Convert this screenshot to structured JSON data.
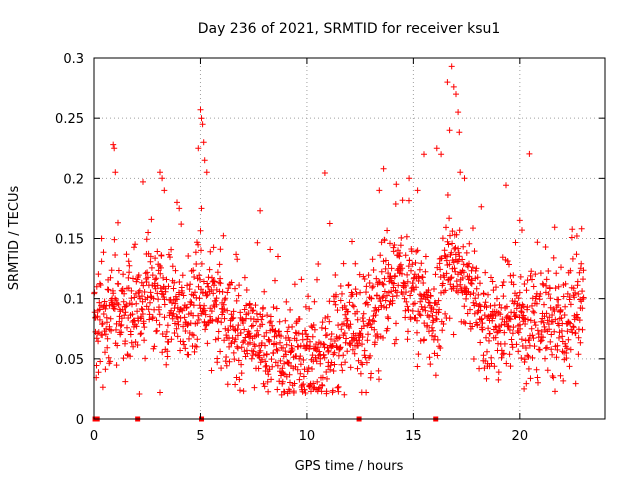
{
  "chart_data": {
    "type": "scatter",
    "title": "Day 236 of 2021, SRMTID for receiver ksu1",
    "xlabel": "GPS time / hours",
    "ylabel": "SRMTID / TECUs",
    "xlim": [
      0,
      24
    ],
    "ylim": [
      0,
      0.3
    ],
    "x_ticks": [
      "0",
      "5",
      "10",
      "15",
      "20"
    ],
    "y_ticks": [
      "0",
      "0.05",
      "0.1",
      "0.15",
      "0.2",
      "0.25",
      "0.3"
    ],
    "grid": true,
    "marker": "+",
    "color": "#ff0000",
    "series": [
      {
        "name": "SRMTID",
        "trend": [
          [
            0.0,
            0.09
          ],
          [
            0.5,
            0.085
          ],
          [
            1.0,
            0.095
          ],
          [
            1.5,
            0.085
          ],
          [
            2.0,
            0.08
          ],
          [
            2.5,
            0.1
          ],
          [
            3.0,
            0.1
          ],
          [
            3.5,
            0.095
          ],
          [
            4.0,
            0.09
          ],
          [
            4.5,
            0.085
          ],
          [
            5.0,
            0.1
          ],
          [
            5.5,
            0.1
          ],
          [
            6.0,
            0.085
          ],
          [
            6.5,
            0.075
          ],
          [
            7.0,
            0.07
          ],
          [
            7.5,
            0.07
          ],
          [
            8.0,
            0.065
          ],
          [
            8.5,
            0.055
          ],
          [
            9.0,
            0.05
          ],
          [
            9.5,
            0.05
          ],
          [
            10.0,
            0.05
          ],
          [
            10.5,
            0.055
          ],
          [
            11.0,
            0.06
          ],
          [
            11.5,
            0.07
          ],
          [
            12.0,
            0.075
          ],
          [
            12.5,
            0.07
          ],
          [
            13.0,
            0.08
          ],
          [
            13.5,
            0.105
          ],
          [
            14.0,
            0.115
          ],
          [
            14.5,
            0.11
          ],
          [
            15.0,
            0.1
          ],
          [
            15.5,
            0.09
          ],
          [
            16.0,
            0.085
          ],
          [
            16.5,
            0.12
          ],
          [
            17.0,
            0.13
          ],
          [
            17.5,
            0.115
          ],
          [
            18.0,
            0.09
          ],
          [
            18.5,
            0.08
          ],
          [
            19.0,
            0.08
          ],
          [
            19.5,
            0.085
          ],
          [
            20.0,
            0.085
          ],
          [
            20.5,
            0.08
          ],
          [
            21.0,
            0.085
          ],
          [
            21.5,
            0.08
          ],
          [
            22.0,
            0.07
          ],
          [
            22.5,
            0.08
          ],
          [
            23.0,
            0.1
          ]
        ],
        "spread": 0.022,
        "point_count": 1700,
        "outliers": [
          [
            0.9,
            0.228
          ],
          [
            0.95,
            0.225
          ],
          [
            1.0,
            0.205
          ],
          [
            2.3,
            0.197
          ],
          [
            3.1,
            0.205
          ],
          [
            3.2,
            0.2
          ],
          [
            3.3,
            0.19
          ],
          [
            3.9,
            0.18
          ],
          [
            4.0,
            0.175
          ],
          [
            4.9,
            0.225
          ],
          [
            5.0,
            0.257
          ],
          [
            5.05,
            0.25
          ],
          [
            5.1,
            0.245
          ],
          [
            5.15,
            0.23
          ],
          [
            5.2,
            0.215
          ],
          [
            5.3,
            0.205
          ],
          [
            7.8,
            0.173
          ],
          [
            13.4,
            0.19
          ],
          [
            13.6,
            0.208
          ],
          [
            14.2,
            0.195
          ],
          [
            14.8,
            0.2
          ],
          [
            15.2,
            0.19
          ],
          [
            15.5,
            0.22
          ],
          [
            16.1,
            0.225
          ],
          [
            16.3,
            0.22
          ],
          [
            16.6,
            0.28
          ],
          [
            16.8,
            0.293
          ],
          [
            16.9,
            0.276
          ],
          [
            17.0,
            0.27
          ],
          [
            17.1,
            0.255
          ],
          [
            16.7,
            0.24
          ],
          [
            17.2,
            0.205
          ],
          [
            17.4,
            0.2
          ],
          [
            20.0,
            0.165
          ],
          [
            20.1,
            0.157
          ],
          [
            12.5,
            0.105
          ],
          [
            10.3,
            0.025
          ],
          [
            9.2,
            0.023
          ],
          [
            3.1,
            0.022
          ],
          [
            20.2,
            0.025
          ]
        ]
      }
    ],
    "zero_markers": [
      0.05,
      0.15,
      2.05,
      5.05,
      12.45,
      16.05
    ]
  }
}
